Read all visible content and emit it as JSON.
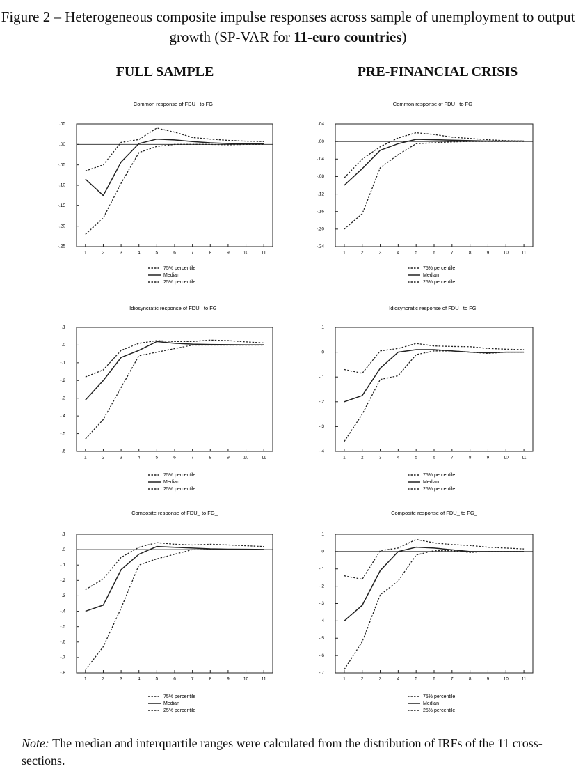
{
  "figure_title": [
    "Figure 2 – Heterogeneous composite impulse responses across sample of unemployment to output growth (SP-VAR for ",
    "11-euro countries",
    ")"
  ],
  "column_titles": [
    "FULL SAMPLE",
    "PRE-FINANCIAL CRISIS"
  ],
  "note": [
    "Note:",
    " The median and interquartile ranges were calculated from the distribution of IRFs of the 11 cross-sections."
  ],
  "chart_data": [
    {
      "type": "line",
      "title": "Common response of FDU_ to FG_",
      "x": [
        1,
        2,
        3,
        4,
        5,
        6,
        7,
        8,
        9,
        10,
        11
      ],
      "xlim": [
        0.5,
        11.5
      ],
      "xticks": [
        1,
        2,
        3,
        4,
        5,
        6,
        7,
        8,
        9,
        10,
        11
      ],
      "ylim": [
        -0.25,
        0.05
      ],
      "yticks": [
        {
          "value": 0.05,
          "label": ".05"
        },
        {
          "value": 0,
          "label": ".00"
        },
        {
          "value": -0.05,
          "label": "-.05"
        },
        {
          "value": -0.1,
          "label": "-.10"
        },
        {
          "value": -0.15,
          "label": "-.15"
        },
        {
          "value": -0.2,
          "label": "-.20"
        },
        {
          "value": -0.25,
          "label": "-.25"
        }
      ],
      "series": [
        {
          "name": "75% percentile",
          "color": "#222",
          "dash": true,
          "values": [
            -0.065,
            -0.05,
            0.005,
            0.012,
            0.04,
            0.03,
            0.017,
            0.013,
            0.01,
            0.008,
            0.007
          ]
        },
        {
          "name": "Median",
          "color": "#222",
          "dash": false,
          "values": [
            -0.085,
            -0.125,
            -0.043,
            0.002,
            0.013,
            0.011,
            0.007,
            0.004,
            0.002,
            0.001,
            0.001
          ]
        },
        {
          "name": "25% percentile",
          "color": "#222",
          "dash": true,
          "values": [
            -0.22,
            -0.18,
            -0.095,
            -0.02,
            -0.005,
            0,
            0,
            0,
            -0.001,
            0,
            0
          ]
        }
      ]
    },
    {
      "type": "line",
      "title": "Common response of FDU_ to FG_",
      "x": [
        1,
        2,
        3,
        4,
        5,
        6,
        7,
        8,
        9,
        10,
        11
      ],
      "xlim": [
        0.5,
        11.5
      ],
      "xticks": [
        1,
        2,
        3,
        4,
        5,
        6,
        7,
        8,
        9,
        10,
        11
      ],
      "ylim": [
        -0.24,
        0.04
      ],
      "yticks": [
        {
          "value": 0.04,
          "label": ".04"
        },
        {
          "value": 0,
          "label": ".00"
        },
        {
          "value": -0.04,
          "label": "-.04"
        },
        {
          "value": -0.08,
          "label": "-.08"
        },
        {
          "value": -0.12,
          "label": "-.12"
        },
        {
          "value": -0.16,
          "label": "-.16"
        },
        {
          "value": -0.2,
          "label": "-.20"
        },
        {
          "value": -0.24,
          "label": "-.24"
        }
      ],
      "series": [
        {
          "name": "75% percentile",
          "color": "#222",
          "dash": true,
          "values": [
            -0.083,
            -0.04,
            -0.012,
            0.008,
            0.02,
            0.016,
            0.01,
            0.007,
            0.004,
            0.002,
            0.001
          ]
        },
        {
          "name": "Median",
          "color": "#222",
          "dash": false,
          "values": [
            -0.1,
            -0.062,
            -0.02,
            -0.005,
            0.005,
            0.004,
            0.003,
            0.002,
            0.001,
            0.001,
            0.001
          ]
        },
        {
          "name": "25% percentile",
          "color": "#222",
          "dash": true,
          "values": [
            -0.2,
            -0.165,
            -0.06,
            -0.03,
            -0.005,
            -0.003,
            -0.001,
            0,
            0,
            0,
            0
          ]
        }
      ]
    },
    {
      "type": "line",
      "title": "Idiosyncratic response of FDU_ to FG_",
      "x": [
        1,
        2,
        3,
        4,
        5,
        6,
        7,
        8,
        9,
        10,
        11
      ],
      "xlim": [
        0.5,
        11.5
      ],
      "xticks": [
        1,
        2,
        3,
        4,
        5,
        6,
        7,
        8,
        9,
        10,
        11
      ],
      "ylim": [
        -0.6,
        0.1
      ],
      "yticks": [
        {
          "value": 0.1,
          "label": ".1"
        },
        {
          "value": 0,
          "label": ".0"
        },
        {
          "value": -0.1,
          "label": "-.1"
        },
        {
          "value": -0.2,
          "label": "-.2"
        },
        {
          "value": -0.3,
          "label": "-.3"
        },
        {
          "value": -0.4,
          "label": "-.4"
        },
        {
          "value": -0.5,
          "label": "-.5"
        },
        {
          "value": -0.6,
          "label": "-.6"
        }
      ],
      "series": [
        {
          "name": "75% percentile",
          "color": "#222",
          "dash": true,
          "values": [
            -0.18,
            -0.14,
            -0.03,
            0.01,
            0.025,
            0.02,
            0.02,
            0.028,
            0.025,
            0.018,
            0.012
          ]
        },
        {
          "name": "Median",
          "color": "#222",
          "dash": false,
          "values": [
            -0.31,
            -0.2,
            -0.07,
            -0.03,
            0.02,
            0.01,
            0.005,
            0.003,
            0.002,
            0.001,
            0.001
          ]
        },
        {
          "name": "25% percentile",
          "color": "#222",
          "dash": true,
          "values": [
            -0.53,
            -0.42,
            -0.24,
            -0.06,
            -0.04,
            -0.02,
            0,
            0,
            0,
            0,
            0
          ]
        }
      ]
    },
    {
      "type": "line",
      "title": "Idiosyncratic response of FDU_ to FG_",
      "x": [
        1,
        2,
        3,
        4,
        5,
        6,
        7,
        8,
        9,
        10,
        11
      ],
      "xlim": [
        0.5,
        11.5
      ],
      "xticks": [
        1,
        2,
        3,
        4,
        5,
        6,
        7,
        8,
        9,
        10,
        11
      ],
      "ylim": [
        -0.4,
        0.1
      ],
      "yticks": [
        {
          "value": 0.1,
          "label": ".1"
        },
        {
          "value": 0,
          "label": ".0"
        },
        {
          "value": -0.1,
          "label": "-.1"
        },
        {
          "value": -0.2,
          "label": "-.2"
        },
        {
          "value": -0.3,
          "label": "-.3"
        },
        {
          "value": -0.4,
          "label": "-.4"
        }
      ],
      "series": [
        {
          "name": "75% percentile",
          "color": "#222",
          "dash": true,
          "values": [
            -0.07,
            -0.085,
            0.005,
            0.015,
            0.035,
            0.025,
            0.023,
            0.022,
            0.015,
            0.012,
            0.01
          ]
        },
        {
          "name": "Median",
          "color": "#222",
          "dash": false,
          "values": [
            -0.2,
            -0.175,
            -0.065,
            0,
            0.01,
            0.01,
            0.005,
            0,
            -0.003,
            0,
            0
          ]
        },
        {
          "name": "25% percentile",
          "color": "#222",
          "dash": true,
          "values": [
            -0.36,
            -0.25,
            -0.11,
            -0.095,
            -0.01,
            0.005,
            0.005,
            0,
            -0.005,
            0,
            0
          ]
        }
      ]
    },
    {
      "type": "line",
      "title": "Composite response of FDU_ to FG_",
      "x": [
        1,
        2,
        3,
        4,
        5,
        6,
        7,
        8,
        9,
        10,
        11
      ],
      "xlim": [
        0.5,
        11.5
      ],
      "xticks": [
        1,
        2,
        3,
        4,
        5,
        6,
        7,
        8,
        9,
        10,
        11
      ],
      "ylim": [
        -0.8,
        0.1
      ],
      "yticks": [
        {
          "value": 0.1,
          "label": ".1"
        },
        {
          "value": 0,
          "label": ".0"
        },
        {
          "value": -0.1,
          "label": "-.1"
        },
        {
          "value": -0.2,
          "label": "-.2"
        },
        {
          "value": -0.3,
          "label": "-.3"
        },
        {
          "value": -0.4,
          "label": "-.4"
        },
        {
          "value": -0.5,
          "label": "-.5"
        },
        {
          "value": -0.6,
          "label": "-.6"
        },
        {
          "value": -0.7,
          "label": "-.7"
        },
        {
          "value": -0.8,
          "label": "-.8"
        }
      ],
      "series": [
        {
          "name": "75% percentile",
          "color": "#222",
          "dash": true,
          "values": [
            -0.26,
            -0.19,
            -0.05,
            0.015,
            0.045,
            0.035,
            0.03,
            0.035,
            0.03,
            0.025,
            0.02
          ]
        },
        {
          "name": "Median",
          "color": "#222",
          "dash": false,
          "values": [
            -0.4,
            -0.36,
            -0.13,
            -0.03,
            0.02,
            0.015,
            0.01,
            0.005,
            0.003,
            0.002,
            0.001
          ]
        },
        {
          "name": "25% percentile",
          "color": "#222",
          "dash": true,
          "values": [
            -0.78,
            -0.63,
            -0.38,
            -0.1,
            -0.06,
            -0.03,
            0,
            0,
            0,
            0,
            0
          ]
        }
      ]
    },
    {
      "type": "line",
      "title": "Composite response of FDU_ to FG_",
      "x": [
        1,
        2,
        3,
        4,
        5,
        6,
        7,
        8,
        9,
        10,
        11
      ],
      "xlim": [
        0.5,
        11.5
      ],
      "xticks": [
        1,
        2,
        3,
        4,
        5,
        6,
        7,
        8,
        9,
        10,
        11
      ],
      "ylim": [
        -0.7,
        0.1
      ],
      "yticks": [
        {
          "value": 0.1,
          "label": ".1"
        },
        {
          "value": 0,
          "label": ".0"
        },
        {
          "value": -0.1,
          "label": "-.1"
        },
        {
          "value": -0.2,
          "label": "-.2"
        },
        {
          "value": -0.3,
          "label": "-.3"
        },
        {
          "value": -0.4,
          "label": "-.4"
        },
        {
          "value": -0.5,
          "label": "-.5"
        },
        {
          "value": -0.6,
          "label": "-.6"
        },
        {
          "value": -0.7,
          "label": "-.7"
        }
      ],
      "series": [
        {
          "name": "75% percentile",
          "color": "#222",
          "dash": true,
          "values": [
            -0.14,
            -0.16,
            0.005,
            0.02,
            0.07,
            0.05,
            0.04,
            0.035,
            0.025,
            0.02,
            0.015
          ]
        },
        {
          "name": "Median",
          "color": "#222",
          "dash": false,
          "values": [
            -0.4,
            -0.31,
            -0.11,
            0,
            0.025,
            0.02,
            0.01,
            0,
            0,
            0,
            0
          ]
        },
        {
          "name": "25% percentile",
          "color": "#222",
          "dash": true,
          "values": [
            -0.68,
            -0.52,
            -0.25,
            -0.17,
            -0.02,
            0.005,
            0.005,
            -0.005,
            0,
            0,
            0
          ]
        }
      ]
    }
  ]
}
